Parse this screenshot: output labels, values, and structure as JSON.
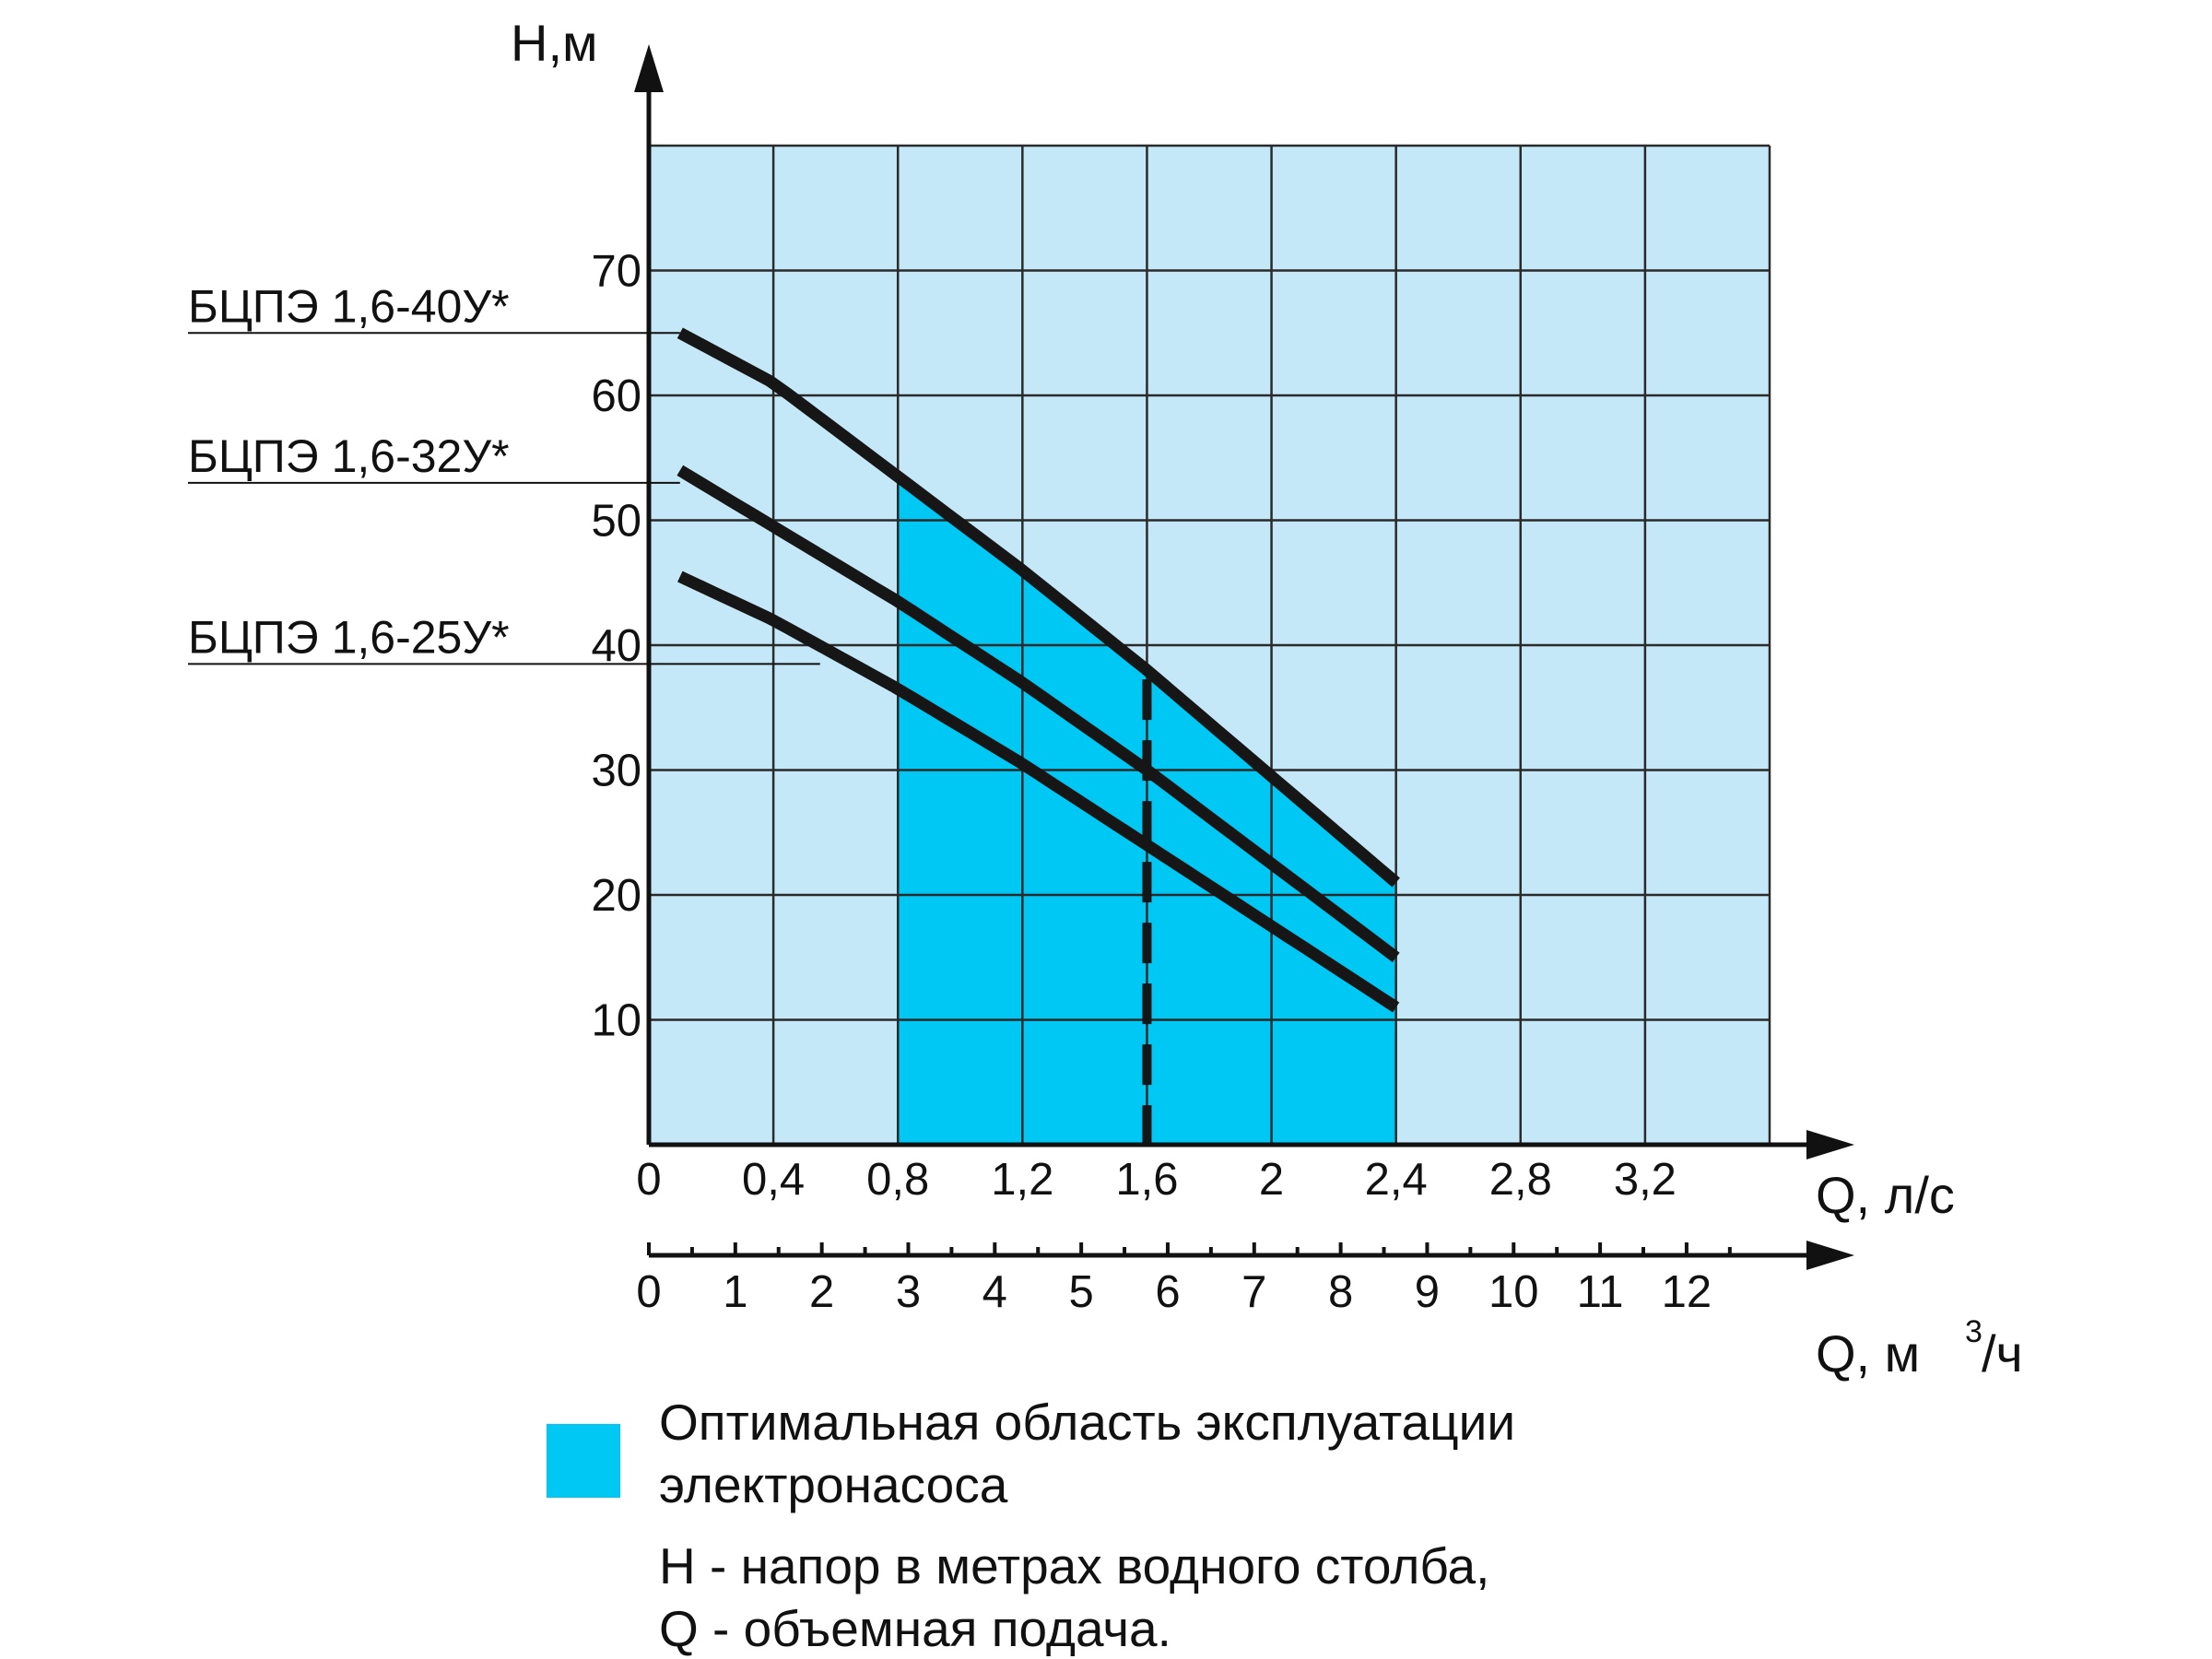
{
  "colors": {
    "plot_background": "#c5e8f8",
    "optimal_region": "#00c8f4",
    "grid": "#2a2a2a",
    "curve": "#161616",
    "axis": "#111111"
  },
  "axes": {
    "y_title": "Н,м",
    "x1_title": "Q, л/с",
    "x2_title_main": "Q, м",
    "x2_title_sup": "3",
    "x2_title_tail": "/ч"
  },
  "legend": {
    "swatch_label_line1": "Оптимальная область эксплуатации",
    "swatch_label_line2": "электронасоса",
    "note_line1": "Н - напор в метрах водного столба,",
    "note_line2": "Q - объемная подача."
  },
  "chart_data": {
    "type": "line",
    "x_unit": "л/с",
    "y_unit": "м",
    "xlim": [
      0,
      3.6
    ],
    "ylim": [
      0,
      80
    ],
    "x_ticks": [
      "0",
      "0,4",
      "0,8",
      "1,2",
      "1,6",
      "2",
      "2,4",
      "2,8",
      "3,2"
    ],
    "x_tick_values": [
      0,
      0.4,
      0.8,
      1.2,
      1.6,
      2.0,
      2.4,
      2.8,
      3.2
    ],
    "x2_ticks": [
      "0",
      "1",
      "2",
      "3",
      "4",
      "5",
      "6",
      "7",
      "8",
      "9",
      "10",
      "11",
      "12"
    ],
    "x2_tick_values": [
      0,
      1,
      2,
      3,
      4,
      5,
      6,
      7,
      8,
      9,
      10,
      11,
      12
    ],
    "y_ticks": [
      "10",
      "20",
      "30",
      "40",
      "50",
      "60",
      "70"
    ],
    "y_tick_values": [
      10,
      20,
      30,
      40,
      50,
      60,
      70
    ],
    "grid": true,
    "optimal_range_x": [
      0.8,
      2.4
    ],
    "rated_flow_x": 1.6,
    "series": [
      {
        "name": "БЦПЭ 1,6-40У*",
        "x": [
          0.1,
          0.4,
          0.8,
          1.2,
          1.6,
          2.0,
          2.4
        ],
        "y": [
          65,
          61,
          53.5,
          46,
          38,
          29.5,
          21
        ]
      },
      {
        "name": "БЦПЭ 1,6-32У*",
        "x": [
          0.1,
          0.4,
          0.8,
          1.2,
          1.6,
          2.0,
          2.4
        ],
        "y": [
          54,
          49.5,
          43.5,
          37,
          30,
          22.5,
          15
        ]
      },
      {
        "name": "БЦПЭ 1,6-25У*",
        "x": [
          0.1,
          0.4,
          0.8,
          1.2,
          1.6,
          2.0,
          2.4
        ],
        "y": [
          45.5,
          42,
          36.5,
          30.5,
          24,
          17.5,
          11
        ]
      }
    ],
    "series_label_y": [
      65,
      53,
      38.5
    ]
  }
}
